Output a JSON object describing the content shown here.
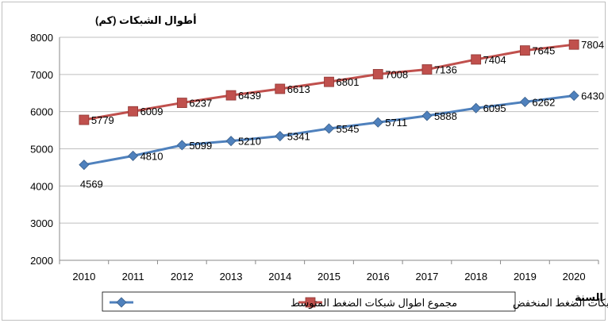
{
  "chart_data": {
    "type": "line",
    "ylabel": "أطوال الشبكات (كم)",
    "xlabel": "السنة",
    "categories": [
      "2010",
      "2011",
      "2012",
      "2013",
      "2014",
      "2015",
      "2016",
      "2017",
      "2018",
      "2019",
      "2020"
    ],
    "ylim": [
      2000,
      8000
    ],
    "yticks": [
      2000,
      3000,
      4000,
      5000,
      6000,
      7000,
      8000
    ],
    "grid": true,
    "legend_position": "bottom",
    "series": [
      {
        "name": "مجموع اطوال شبكات الضغط المتوسط",
        "marker": "diamond",
        "color": "#4f81bd",
        "values": [
          4569,
          4810,
          5099,
          5210,
          5341,
          5545,
          5711,
          5888,
          6095,
          6262,
          6430
        ]
      },
      {
        "name": "مجموع اطوال شبكات الضغط المنخفض",
        "marker": "square",
        "color": "#c0504d",
        "values": [
          5779,
          6009,
          6237,
          6439,
          6613,
          6801,
          7008,
          7136,
          7404,
          7645,
          7804
        ]
      }
    ]
  }
}
